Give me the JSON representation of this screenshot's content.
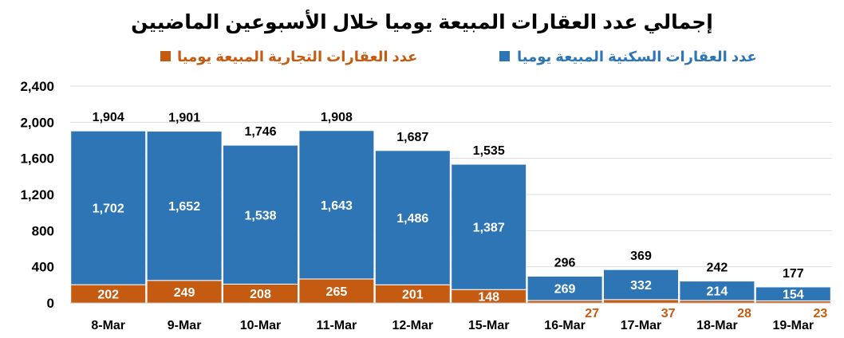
{
  "chart_data": {
    "type": "bar",
    "stacked": true,
    "title": "إجمالي عدد العقارات المبيعة يوميا خلال الأسبوعين الماضيين",
    "xlabel": "",
    "ylabel": "",
    "ylim": [
      0,
      2400
    ],
    "yticks": [
      "0",
      "400",
      "800",
      "1,200",
      "1,600",
      "2,000",
      "2,400"
    ],
    "ytick_values": [
      0,
      400,
      800,
      1200,
      1600,
      2000,
      2400
    ],
    "grid": true,
    "legend_position": "top",
    "categories": [
      "8-Mar",
      "9-Mar",
      "10-Mar",
      "11-Mar",
      "12-Mar",
      "15-Mar",
      "16-Mar",
      "17-Mar",
      "18-Mar",
      "19-Mar"
    ],
    "series": [
      {
        "name": "عدد العقارات التجارية المبيعة يوميا",
        "color": "#C55A11",
        "values": [
          202,
          249,
          208,
          265,
          201,
          148,
          27,
          37,
          28,
          23
        ],
        "labels": [
          "202",
          "249",
          "208",
          "265",
          "201",
          "148",
          "27",
          "37",
          "28",
          "23"
        ]
      },
      {
        "name": "عدد العقارات السكنية المبيعة يوميا",
        "color": "#2E75B6",
        "values": [
          1702,
          1652,
          1538,
          1643,
          1486,
          1387,
          269,
          332,
          214,
          154
        ],
        "labels": [
          "1,702",
          "1,652",
          "1,538",
          "1,643",
          "1,486",
          "1,387",
          "269",
          "332",
          "214",
          "154"
        ]
      }
    ],
    "totals": [
      1904,
      1901,
      1746,
      1908,
      1687,
      1535,
      296,
      369,
      242,
      177
    ],
    "total_labels": [
      "1,904",
      "1,901",
      "1,746",
      "1,908",
      "1,687",
      "1,535",
      "296",
      "369",
      "242",
      "177"
    ]
  }
}
